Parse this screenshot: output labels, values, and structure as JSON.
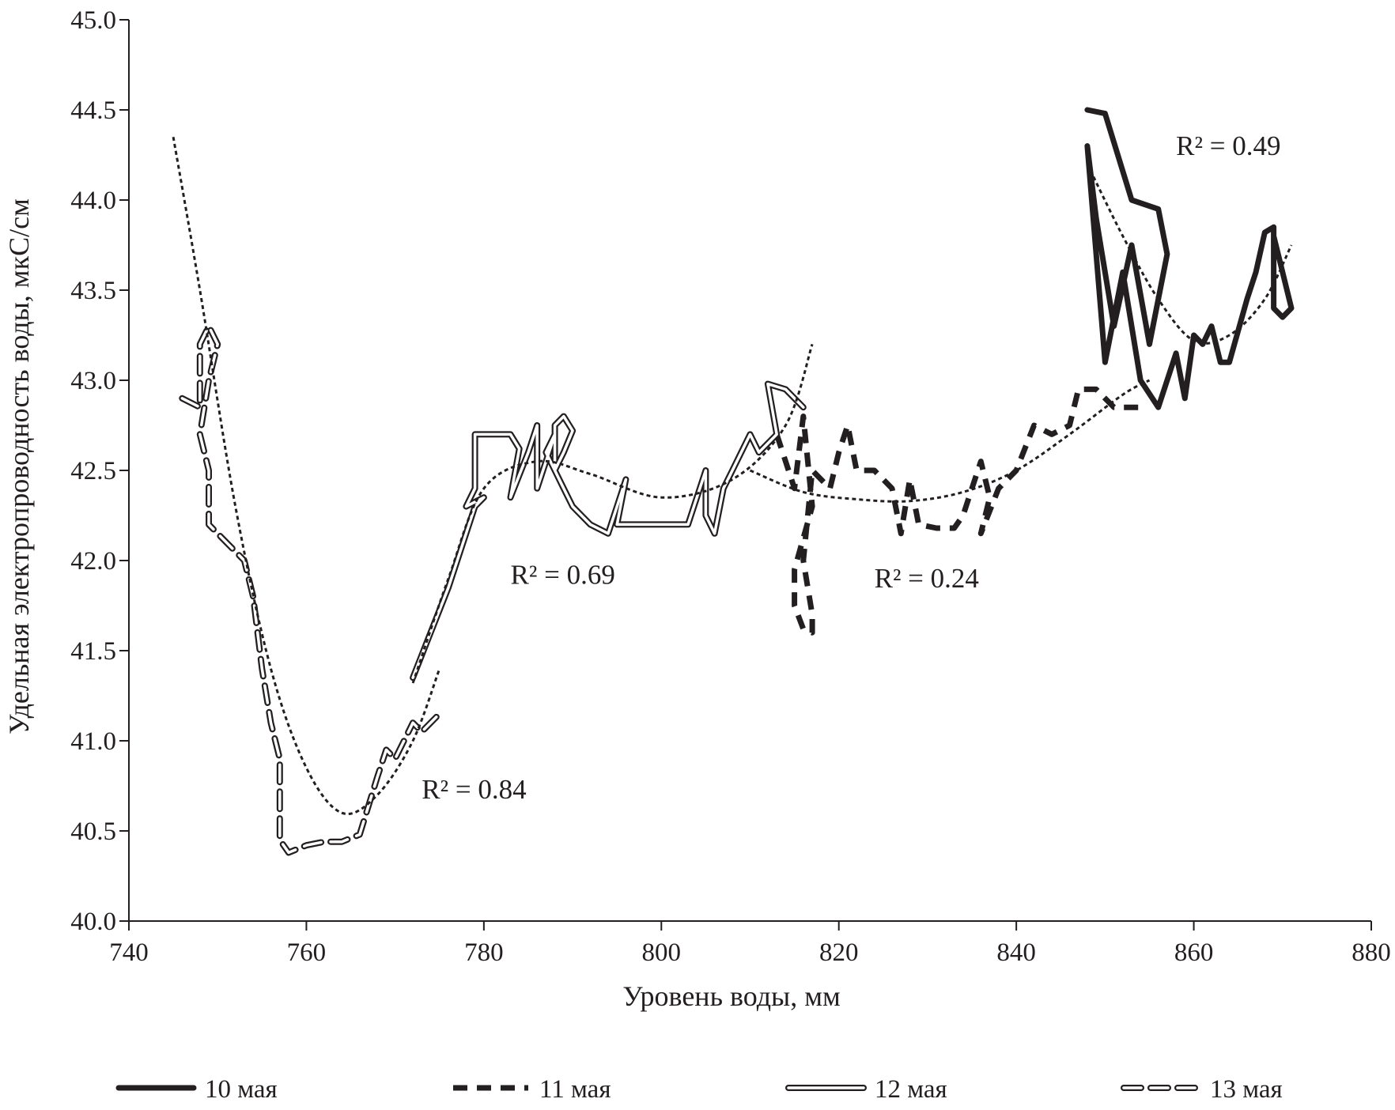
{
  "chart_data": {
    "type": "line",
    "xlabel": "Уровень воды, мм",
    "ylabel": "Удельная электропроводность воды, мкС/см",
    "xlim": [
      740,
      880
    ],
    "ylim": [
      40.0,
      45.0
    ],
    "x_ticks": [
      "740",
      "760",
      "780",
      "800",
      "820",
      "840",
      "860",
      "880"
    ],
    "y_ticks": [
      "40.0",
      "40.5",
      "41.0",
      "41.5",
      "42.0",
      "42.5",
      "43.0",
      "43.5",
      "44.0",
      "44.5",
      "45.0"
    ],
    "legend_position": "bottom",
    "legend": [
      {
        "label": "10 мая",
        "style": "thick-solid"
      },
      {
        "label": "11 мая",
        "style": "thick-dashed"
      },
      {
        "label": "12 мая",
        "style": "double-solid"
      },
      {
        "label": "13 мая",
        "style": "double-dashed"
      }
    ],
    "annotations": [
      {
        "text": "R² = 0.49",
        "x": 858,
        "y": 44.25
      },
      {
        "text": "R² = 0.69",
        "x": 783,
        "y": 41.87
      },
      {
        "text": "R² = 0.24",
        "x": 824,
        "y": 41.85
      },
      {
        "text": "R² = 0.84",
        "x": 773,
        "y": 40.68
      }
    ],
    "series": [
      {
        "label": "10 мая",
        "style": "thick-solid",
        "points": [
          [
            848,
            44.5
          ],
          [
            850,
            44.48
          ],
          [
            853,
            44.0
          ],
          [
            856,
            43.95
          ],
          [
            857,
            43.7
          ],
          [
            855,
            43.2
          ],
          [
            853,
            43.75
          ],
          [
            851,
            43.3
          ],
          [
            849,
            43.9
          ],
          [
            848,
            44.3
          ],
          [
            850,
            43.1
          ],
          [
            852,
            43.6
          ],
          [
            854,
            43.0
          ],
          [
            856,
            42.85
          ],
          [
            858,
            43.15
          ],
          [
            859,
            42.9
          ],
          [
            860,
            43.25
          ],
          [
            861,
            43.2
          ],
          [
            862,
            43.3
          ],
          [
            863,
            43.1
          ],
          [
            864,
            43.1
          ],
          [
            866,
            43.45
          ],
          [
            867,
            43.6
          ],
          [
            868,
            43.82
          ],
          [
            869,
            43.85
          ],
          [
            869,
            43.4
          ],
          [
            870,
            43.35
          ],
          [
            871,
            43.4
          ],
          [
            870,
            43.6
          ],
          [
            869,
            43.8
          ]
        ],
        "trend": [
          [
            848,
            44.2
          ],
          [
            852,
            43.8
          ],
          [
            856,
            43.45
          ],
          [
            860,
            43.22
          ],
          [
            864,
            43.25
          ],
          [
            868,
            43.45
          ],
          [
            871,
            43.75
          ]
        ]
      },
      {
        "label": "11 мая",
        "style": "thick-dashed",
        "points": [
          [
            813,
            42.7
          ],
          [
            815,
            42.4
          ],
          [
            816,
            42.8
          ],
          [
            817,
            42.3
          ],
          [
            815,
            41.95
          ],
          [
            815,
            41.75
          ],
          [
            816,
            41.62
          ],
          [
            817,
            41.6
          ],
          [
            817,
            41.7
          ],
          [
            816,
            42.0
          ],
          [
            817,
            42.5
          ],
          [
            819,
            42.4
          ],
          [
            820,
            42.6
          ],
          [
            821,
            42.75
          ],
          [
            822,
            42.5
          ],
          [
            824,
            42.5
          ],
          [
            826,
            42.4
          ],
          [
            827,
            42.15
          ],
          [
            828,
            42.45
          ],
          [
            829,
            42.2
          ],
          [
            831,
            42.18
          ],
          [
            833,
            42.18
          ],
          [
            834,
            42.25
          ],
          [
            835,
            42.4
          ],
          [
            836,
            42.55
          ],
          [
            837,
            42.35
          ],
          [
            836,
            42.15
          ],
          [
            838,
            42.4
          ],
          [
            840,
            42.5
          ],
          [
            842,
            42.75
          ],
          [
            844,
            42.7
          ],
          [
            846,
            42.75
          ],
          [
            847,
            42.95
          ],
          [
            849,
            42.95
          ],
          [
            851,
            42.85
          ],
          [
            854,
            42.85
          ]
        ],
        "trend": [
          [
            810,
            42.5
          ],
          [
            816,
            42.38
          ],
          [
            822,
            42.34
          ],
          [
            828,
            42.33
          ],
          [
            834,
            42.38
          ],
          [
            840,
            42.5
          ],
          [
            846,
            42.7
          ],
          [
            852,
            42.92
          ],
          [
            855,
            43.0
          ]
        ]
      },
      {
        "label": "12 мая",
        "style": "double-solid",
        "points": [
          [
            772,
            41.35
          ],
          [
            774,
            41.6
          ],
          [
            776,
            41.85
          ],
          [
            778,
            42.15
          ],
          [
            779,
            42.3
          ],
          [
            780,
            42.35
          ],
          [
            778,
            42.3
          ],
          [
            779,
            42.4
          ],
          [
            779,
            42.7
          ],
          [
            783,
            42.7
          ],
          [
            784,
            42.62
          ],
          [
            783,
            42.35
          ],
          [
            785,
            42.6
          ],
          [
            786,
            42.75
          ],
          [
            786,
            42.4
          ],
          [
            788,
            42.7
          ],
          [
            787,
            42.6
          ],
          [
            788,
            42.5
          ],
          [
            788,
            42.75
          ],
          [
            789,
            42.8
          ],
          [
            790,
            42.72
          ],
          [
            789,
            42.6
          ],
          [
            788,
            42.5
          ],
          [
            789,
            42.4
          ],
          [
            790,
            42.3
          ],
          [
            792,
            42.2
          ],
          [
            794,
            42.15
          ],
          [
            796,
            42.45
          ],
          [
            795,
            42.2
          ],
          [
            797,
            42.2
          ],
          [
            799,
            42.2
          ],
          [
            801,
            42.2
          ],
          [
            803,
            42.2
          ],
          [
            805,
            42.5
          ],
          [
            805,
            42.25
          ],
          [
            806,
            42.15
          ],
          [
            807,
            42.4
          ],
          [
            808,
            42.5
          ],
          [
            810,
            42.7
          ],
          [
            811,
            42.6
          ],
          [
            813,
            42.7
          ],
          [
            812,
            42.98
          ],
          [
            814,
            42.95
          ],
          [
            816,
            42.85
          ]
        ],
        "trend": [
          [
            772,
            41.32
          ],
          [
            776,
            41.9
          ],
          [
            780,
            42.4
          ],
          [
            786,
            42.55
          ],
          [
            792,
            42.48
          ],
          [
            800,
            42.35
          ],
          [
            808,
            42.45
          ],
          [
            814,
            42.75
          ],
          [
            817,
            43.2
          ]
        ]
      },
      {
        "label": "13 мая",
        "style": "double-dashed",
        "points": [
          [
            746,
            42.9
          ],
          [
            748,
            42.85
          ],
          [
            748,
            43.2
          ],
          [
            749,
            43.3
          ],
          [
            750,
            43.2
          ],
          [
            749,
            43.0
          ],
          [
            748,
            42.7
          ],
          [
            749,
            42.5
          ],
          [
            749,
            42.2
          ],
          [
            751,
            42.1
          ],
          [
            753,
            42.0
          ],
          [
            754,
            41.8
          ],
          [
            755,
            41.4
          ],
          [
            756,
            41.1
          ],
          [
            757,
            40.9
          ],
          [
            757,
            40.6
          ],
          [
            757,
            40.45
          ],
          [
            758,
            40.38
          ],
          [
            760,
            40.42
          ],
          [
            762,
            40.44
          ],
          [
            764,
            40.44
          ],
          [
            766,
            40.48
          ],
          [
            768,
            40.8
          ],
          [
            769,
            40.95
          ],
          [
            770,
            40.9
          ],
          [
            771,
            41.0
          ],
          [
            772,
            41.1
          ],
          [
            773,
            41.05
          ],
          [
            775,
            41.15
          ]
        ],
        "trend": [
          [
            745,
            44.35
          ],
          [
            748,
            43.5
          ],
          [
            752,
            42.3
          ],
          [
            756,
            41.4
          ],
          [
            760,
            40.85
          ],
          [
            764,
            40.6
          ],
          [
            768,
            40.7
          ],
          [
            772,
            41.0
          ],
          [
            775,
            41.4
          ]
        ]
      }
    ]
  }
}
